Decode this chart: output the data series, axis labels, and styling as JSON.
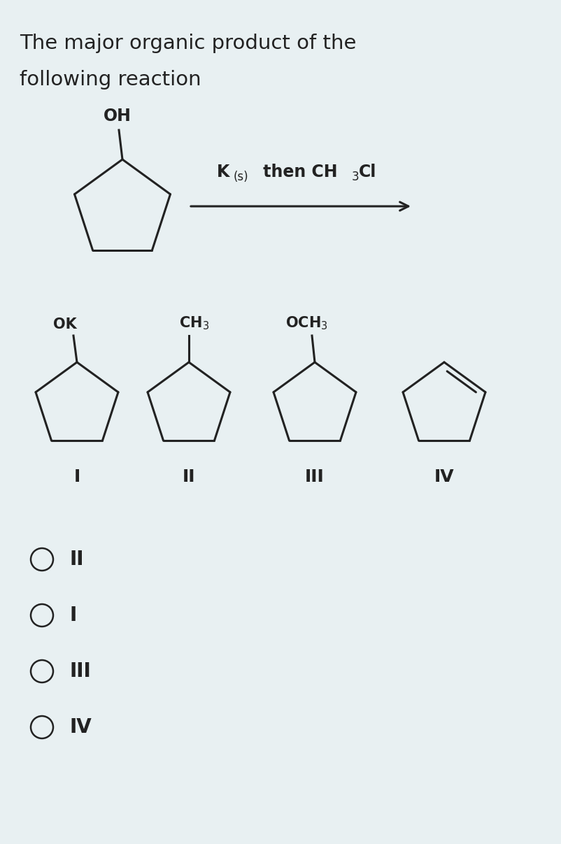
{
  "bg_color": "#e8f0f2",
  "title_line1": "The major organic product of the",
  "title_line2": "following reaction",
  "title_fontsize": 21,
  "answer_options": [
    "II",
    "I",
    "III",
    "IV"
  ],
  "structure_labels": [
    "I",
    "II",
    "III",
    "IV"
  ],
  "line_color": "#222222",
  "text_color": "#222222",
  "fig_w": 8.03,
  "fig_h": 12.07,
  "dpi": 100
}
